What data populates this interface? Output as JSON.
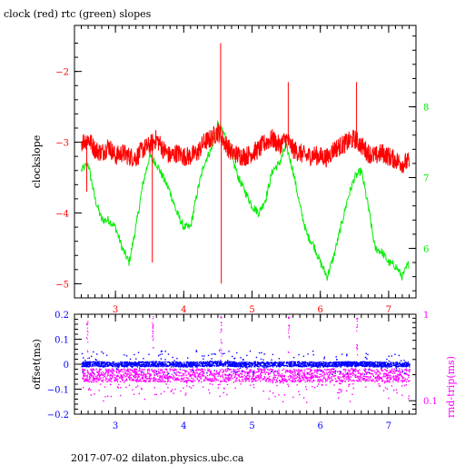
{
  "title": "clock (red) rtc (green) slopes",
  "footer": "2017-07-02  dilaton.physics.ubc.ca",
  "colors": {
    "clock": "#ff0000",
    "rtc": "#00ee00",
    "offset": "#0000ff",
    "rnd_trip": "#ff00ff",
    "frame": "#000000"
  },
  "chart_data": [
    {
      "type": "line",
      "title": "clock (red) rtc (green) slopes",
      "xlabel": "",
      "xlim": [
        2.4,
        7.4
      ],
      "x_ticks": [
        "3",
        "4",
        "5",
        "6",
        "7"
      ],
      "ylabel": "clockslope",
      "ylim": [
        -5.2,
        -1.35
      ],
      "y_ticks": [
        "-2",
        "-3",
        "-4",
        "-5"
      ],
      "y2lim": [
        5.3,
        9.15
      ],
      "y2_ticks": [
        "8",
        "7",
        "6"
      ],
      "series": [
        {
          "name": "clock",
          "axis": "left",
          "x": [
            2.5,
            2.6,
            2.7,
            2.8,
            2.9,
            3.0,
            3.1,
            3.2,
            3.3,
            3.4,
            3.5,
            3.6,
            3.7,
            3.8,
            3.9,
            4.0,
            4.1,
            4.2,
            4.3,
            4.4,
            4.5,
            4.6,
            4.7,
            4.8,
            4.9,
            5.0,
            5.1,
            5.2,
            5.3,
            5.4,
            5.5,
            5.6,
            5.7,
            5.8,
            5.9,
            6.0,
            6.1,
            6.2,
            6.3,
            6.4,
            6.5,
            6.6,
            6.7,
            6.8,
            6.9,
            7.0,
            7.1,
            7.2,
            7.3
          ],
          "values": [
            -3.0,
            -2.95,
            -3.1,
            -3.15,
            -3.05,
            -3.2,
            -3.15,
            -3.2,
            -3.22,
            -3.1,
            -3.05,
            -2.95,
            -3.1,
            -3.2,
            -3.15,
            -3.2,
            -3.2,
            -3.15,
            -3.0,
            -2.95,
            -2.85,
            -3.0,
            -3.15,
            -3.18,
            -3.2,
            -3.15,
            -3.1,
            -3.0,
            -2.95,
            -3.05,
            -2.95,
            -3.1,
            -3.15,
            -3.2,
            -3.18,
            -3.2,
            -3.22,
            -3.1,
            -3.05,
            -3.0,
            -2.95,
            -3.05,
            -3.15,
            -3.2,
            -3.15,
            -3.2,
            -3.25,
            -3.3,
            -3.28
          ]
        },
        {
          "name": "rtc",
          "axis": "right",
          "x": [
            2.5,
            2.6,
            2.7,
            2.8,
            2.9,
            3.0,
            3.1,
            3.2,
            3.3,
            3.4,
            3.5,
            3.6,
            3.7,
            3.8,
            3.9,
            4.0,
            4.1,
            4.2,
            4.3,
            4.4,
            4.5,
            4.6,
            4.7,
            4.8,
            4.9,
            5.0,
            5.1,
            5.2,
            5.3,
            5.4,
            5.5,
            5.6,
            5.7,
            5.8,
            5.9,
            6.0,
            6.1,
            6.2,
            6.3,
            6.4,
            6.5,
            6.6,
            6.7,
            6.8,
            6.9,
            7.0,
            7.1,
            7.2,
            7.3
          ],
          "values": [
            7.1,
            7.2,
            6.7,
            6.4,
            6.4,
            6.3,
            6.0,
            5.8,
            6.3,
            6.9,
            7.3,
            7.2,
            7.0,
            6.8,
            6.5,
            6.3,
            6.3,
            6.8,
            7.2,
            7.4,
            7.75,
            7.6,
            7.3,
            7.0,
            6.8,
            6.6,
            6.5,
            6.7,
            7.1,
            7.2,
            7.45,
            7.1,
            6.6,
            6.2,
            6.05,
            5.8,
            5.6,
            5.9,
            6.3,
            6.7,
            7.0,
            7.1,
            6.6,
            6.0,
            5.95,
            5.8,
            5.75,
            5.6,
            5.8
          ]
        }
      ]
    },
    {
      "type": "scatter",
      "xlabel": "",
      "xlim": [
        2.4,
        7.4
      ],
      "x_ticks": [
        "3",
        "4",
        "5",
        "6",
        "7"
      ],
      "ylabel": "offset(ms)",
      "ylim": [
        -0.2,
        0.2
      ],
      "y_ticks": [
        "0.2",
        "0.1",
        "0",
        "-0.1",
        "-0.2"
      ],
      "y2label": "rnd-trip(ms)",
      "y2_ticks": [
        "1",
        "0.1"
      ],
      "y2_scale": "log",
      "series": [
        {
          "name": "offset",
          "axis": "left",
          "x": [
            2.5,
            2.75,
            3.0,
            3.25,
            3.5,
            3.75,
            4.0,
            4.25,
            4.5,
            4.75,
            5.0,
            5.25,
            5.5,
            5.75,
            6.0,
            6.25,
            6.5,
            6.75,
            7.0,
            7.25
          ],
          "values": [
            0.002,
            0.003,
            0.001,
            0.002,
            0.003,
            0.002,
            0.001,
            0.002,
            0.004,
            0.002,
            0.001,
            0.002,
            0.003,
            0.002,
            0.001,
            0.002,
            0.003,
            0.002,
            0.001,
            0.002
          ]
        },
        {
          "name": "rnd-trip",
          "axis": "right",
          "x": [
            2.5,
            2.75,
            3.0,
            3.25,
            3.5,
            3.75,
            4.0,
            4.25,
            4.5,
            4.75,
            5.0,
            5.25,
            5.5,
            5.75,
            6.0,
            6.25,
            6.5,
            6.75,
            7.0,
            7.25
          ],
          "values": [
            0.2,
            0.2,
            0.2,
            0.2,
            0.2,
            0.2,
            0.2,
            0.2,
            0.2,
            0.2,
            0.2,
            0.2,
            0.2,
            0.2,
            0.2,
            0.2,
            0.2,
            0.2,
            0.2,
            0.2
          ]
        }
      ]
    }
  ]
}
